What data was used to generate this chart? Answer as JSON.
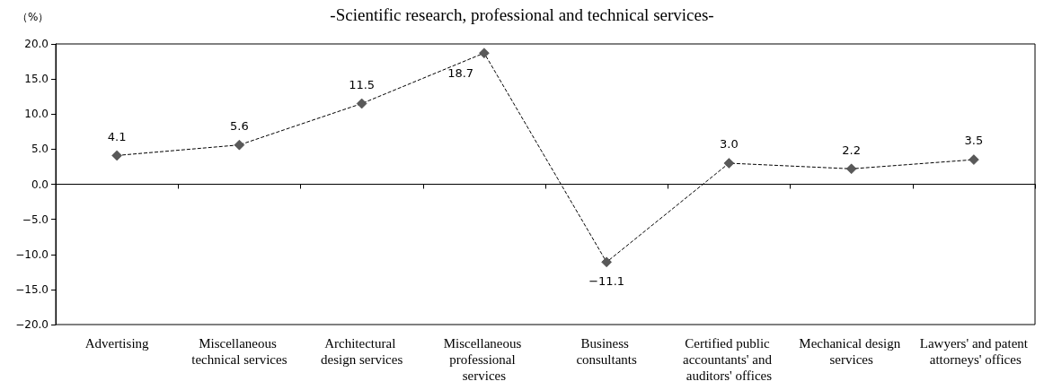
{
  "chart_data": {
    "type": "line",
    "title": "-Scientific research, professional and technical services-",
    "ylabel": "（%）",
    "categories": [
      "Advertising",
      "Miscellaneous technical services",
      "Architectural design services",
      "Miscellaneous professional services",
      "Business consultants",
      "Certified public accountants' and auditors' offices",
      "Mechanical design services",
      "Lawyers' and patent attorneys' offices"
    ],
    "series": [
      {
        "color": "#595959",
        "values": [
          4.1,
          5.6,
          11.5,
          18.7,
          -11.1,
          3.0,
          2.2,
          3.5
        ],
        "value_labels": [
          "4.1",
          "5.6",
          "11.5",
          "18.7",
          "−11.1",
          "3.0",
          "2.2",
          "3.5"
        ]
      }
    ],
    "ylim": [
      -20,
      20
    ],
    "yticks": [
      {
        "value": -20,
        "label": "−20.0"
      },
      {
        "value": -15,
        "label": "−15.0"
      },
      {
        "value": -10,
        "label": "−10.0"
      },
      {
        "value": -5,
        "label": "−5.0"
      },
      {
        "value": 0,
        "label": "0.0"
      },
      {
        "value": 5,
        "label": "5.0"
      },
      {
        "value": 10,
        "label": "10.0"
      },
      {
        "value": 15,
        "label": "15.0"
      },
      {
        "value": 20,
        "label": "20.0"
      }
    ],
    "marker": "diamond",
    "line_style": "dashed"
  }
}
